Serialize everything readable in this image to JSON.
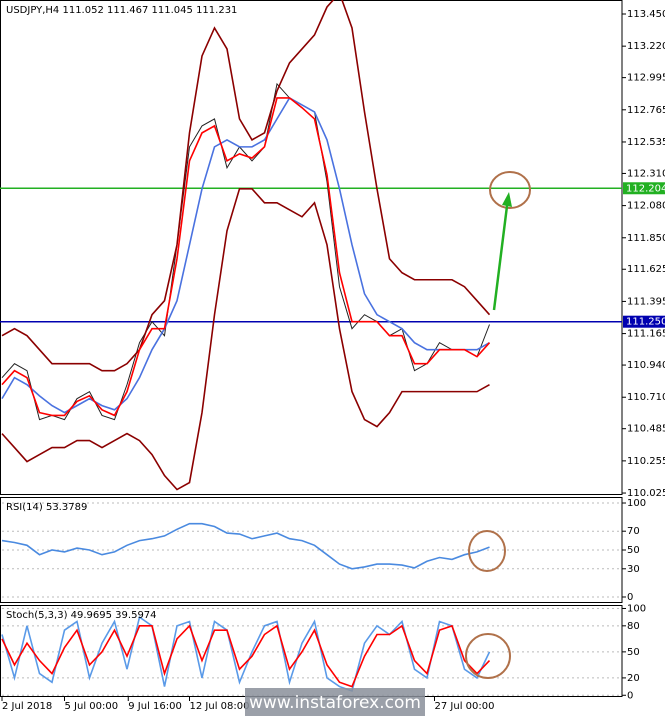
{
  "watermark": "www.instaforex.com",
  "chart_data": [
    {
      "type": "line",
      "title": "USDJPY,H4  111.052 111.467 111.045 111.231",
      "xlim": [
        0,
        49.6
      ],
      "ylim": [
        110.011,
        113.55
      ],
      "yticks": [
        {
          "value": 113.45,
          "label": "113.450"
        },
        {
          "value": 113.22,
          "label": "113.220"
        },
        112.995,
        112.765,
        112.535,
        {
          "value": 112.31,
          "label": "112.310"
        },
        {
          "value": 112.08,
          "label": "112.080"
        },
        {
          "value": 111.85,
          "label": "111.850"
        },
        111.625,
        111.395,
        111.165,
        {
          "value": 110.94,
          "label": "110.940"
        },
        {
          "value": 110.71,
          "label": "110.710"
        },
        110.485,
        110.255,
        {
          "value": 110.025,
          "label": "110.025"
        }
      ],
      "levels": [
        {
          "value": 112.204,
          "label": "112.204",
          "color": "#22b022"
        },
        {
          "value": 111.25,
          "label": "111.250",
          "color": "#0000b0"
        }
      ],
      "series": [
        {
          "name": "Close",
          "color": "#222222",
          "values": [
            110.85,
            110.95,
            110.9,
            110.55,
            110.58,
            110.55,
            110.7,
            110.75,
            110.58,
            110.55,
            110.8,
            111.1,
            111.25,
            111.15,
            111.8,
            112.5,
            112.65,
            112.7,
            112.35,
            112.5,
            112.4,
            112.5,
            112.95,
            112.85,
            112.8,
            112.75,
            112.25,
            111.5,
            111.2,
            111.3,
            111.25,
            111.15,
            111.2,
            110.9,
            110.95,
            111.1,
            111.05,
            111.05,
            111.0,
            111.23
          ]
        },
        {
          "name": "Upper band",
          "color": "#8b0000",
          "values": [
            111.15,
            111.2,
            111.15,
            111.05,
            110.95,
            110.95,
            110.95,
            110.95,
            110.9,
            110.9,
            110.95,
            111.05,
            111.3,
            111.4,
            111.8,
            112.6,
            113.15,
            113.35,
            113.2,
            112.7,
            112.55,
            112.6,
            112.9,
            113.1,
            113.2,
            113.3,
            113.5,
            113.6,
            113.35,
            112.75,
            112.2,
            111.7,
            111.6,
            111.55,
            111.55,
            111.55,
            111.55,
            111.5,
            111.4,
            111.3
          ]
        },
        {
          "name": "Lower band",
          "color": "#8b0000",
          "values": [
            110.45,
            110.35,
            110.25,
            110.3,
            110.35,
            110.35,
            110.4,
            110.4,
            110.35,
            110.4,
            110.45,
            110.4,
            110.3,
            110.15,
            110.05,
            110.1,
            110.6,
            111.3,
            111.9,
            112.2,
            112.2,
            112.1,
            112.1,
            112.05,
            112.0,
            112.1,
            111.8,
            111.2,
            110.75,
            110.55,
            110.5,
            110.6,
            110.75,
            110.75,
            110.75,
            110.75,
            110.75,
            110.75,
            110.75,
            110.8
          ]
        },
        {
          "name": "MA slow",
          "color": "#4a72e0",
          "values": [
            110.7,
            110.85,
            110.8,
            110.72,
            110.65,
            110.6,
            110.65,
            110.7,
            110.65,
            110.62,
            110.7,
            110.85,
            111.05,
            111.2,
            111.4,
            111.8,
            112.2,
            112.5,
            112.55,
            112.5,
            112.5,
            112.55,
            112.7,
            112.85,
            112.8,
            112.75,
            112.55,
            112.2,
            111.8,
            111.45,
            111.3,
            111.25,
            111.2,
            111.1,
            111.05,
            111.05,
            111.05,
            111.05,
            111.05,
            111.1
          ]
        },
        {
          "name": "MA fast",
          "color": "#ff0000",
          "values": [
            110.8,
            110.9,
            110.85,
            110.6,
            110.58,
            110.58,
            110.68,
            110.72,
            110.62,
            110.58,
            110.75,
            111.05,
            111.2,
            111.2,
            111.7,
            112.4,
            112.6,
            112.65,
            112.4,
            112.45,
            112.42,
            112.5,
            112.85,
            112.85,
            112.78,
            112.7,
            112.3,
            111.6,
            111.25,
            111.25,
            111.25,
            111.15,
            111.15,
            110.95,
            110.95,
            111.05,
            111.05,
            111.05,
            111.0,
            111.1
          ]
        }
      ]
    },
    {
      "type": "line",
      "title": "RSI(14) 53.3789",
      "xlim": [
        0,
        49.6
      ],
      "ylim": [
        -6.4,
        106.4
      ],
      "yticks": [
        100,
        70,
        50,
        30,
        0
      ],
      "series": [
        {
          "name": "RSI",
          "color": "#4a8ae0",
          "values": [
            60,
            58,
            55,
            45,
            50,
            48,
            52,
            50,
            45,
            48,
            55,
            60,
            62,
            65,
            72,
            78,
            78,
            75,
            68,
            67,
            62,
            65,
            68,
            62,
            60,
            55,
            45,
            35,
            30,
            32,
            35,
            35,
            34,
            31,
            38,
            42,
            40,
            45,
            48,
            53
          ]
        }
      ]
    },
    {
      "type": "line",
      "title": "Stoch(5,3,3) 49.9695 39.5974",
      "xlim": [
        0,
        49.6
      ],
      "ylim": [
        -2,
        104
      ],
      "yticks": [
        100,
        80,
        50,
        20,
        0
      ],
      "xticks": [
        {
          "value": 0,
          "label": "2 Jul 2018"
        },
        {
          "value": 5,
          "label": "5 Jul 00:00"
        },
        {
          "value": 10.1,
          "label": "9 Jul 16:00"
        },
        {
          "value": 15,
          "label": "12 Jul 08:00"
        },
        {
          "value": 34.6,
          "label": "27 Jul 00:00"
        }
      ],
      "series": [
        {
          "name": "Main",
          "color": "#5a9ae8",
          "values": [
            70,
            20,
            80,
            25,
            15,
            75,
            85,
            20,
            60,
            85,
            30,
            90,
            80,
            10,
            80,
            85,
            20,
            85,
            75,
            15,
            50,
            80,
            85,
            15,
            60,
            85,
            20,
            10,
            5,
            60,
            80,
            70,
            85,
            30,
            20,
            85,
            80,
            30,
            20,
            50
          ]
        },
        {
          "name": "Signal",
          "color": "#ff0000",
          "values": [
            65,
            35,
            60,
            40,
            25,
            55,
            75,
            35,
            50,
            75,
            45,
            80,
            80,
            25,
            65,
            80,
            40,
            75,
            75,
            30,
            45,
            70,
            80,
            30,
            50,
            75,
            35,
            15,
            10,
            45,
            70,
            70,
            80,
            40,
            25,
            75,
            80,
            40,
            25,
            40
          ]
        }
      ]
    }
  ]
}
